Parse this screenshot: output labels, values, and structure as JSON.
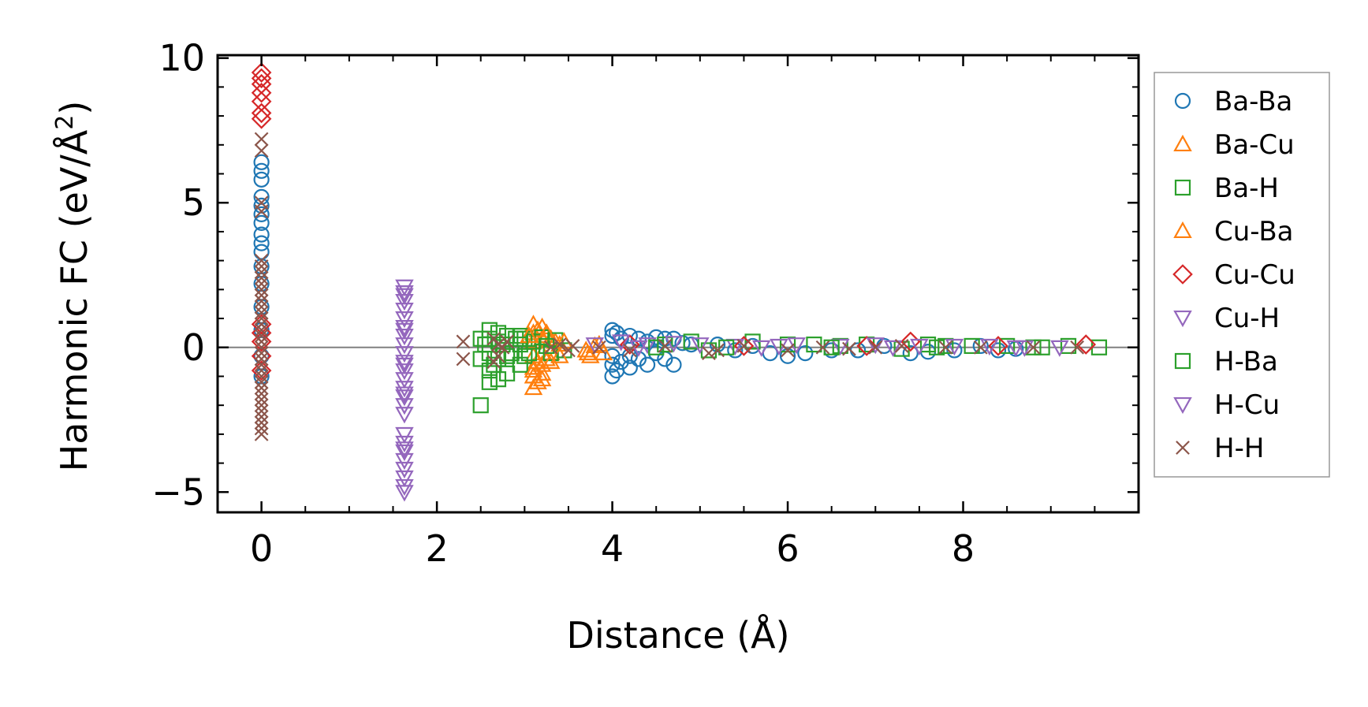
{
  "chart_data": {
    "type": "scatter",
    "xlabel": "Distance (Å)",
    "ylabel": "Harmonic FC (eV/Å",
    "ylabel_sup": "2",
    "ylabel_close": ")",
    "xlim": [
      -0.5,
      10.0
    ],
    "ylim": [
      -5.7,
      10.1
    ],
    "xticks": [
      0,
      2,
      4,
      6,
      8
    ],
    "xtick_labels": [
      "0",
      "2",
      "4",
      "6",
      "8"
    ],
    "yticks": [
      -5,
      0,
      5,
      10
    ],
    "ytick_labels": [
      "−5",
      "0",
      "5",
      "10"
    ],
    "reference_line": {
      "y": 0,
      "color": "#808080"
    },
    "grid": false,
    "legend_position": "outside-right",
    "series": [
      {
        "name": "Ba-Ba",
        "marker": "circle",
        "color": "#1f77b4",
        "points": [
          [
            0,
            6.4
          ],
          [
            0,
            6.1
          ],
          [
            0,
            5.8
          ],
          [
            0,
            5.2
          ],
          [
            0,
            4.9
          ],
          [
            0,
            4.6
          ],
          [
            0,
            4.3
          ],
          [
            0,
            3.9
          ],
          [
            0,
            3.6
          ],
          [
            0,
            3.3
          ],
          [
            0,
            2.8
          ],
          [
            0,
            2.2
          ],
          [
            0,
            1.4
          ],
          [
            0,
            0.6
          ],
          [
            0,
            -0.3
          ],
          [
            0,
            -1.0
          ],
          [
            4.0,
            0.6
          ],
          [
            4.0,
            0.4
          ],
          [
            4.0,
            -0.3
          ],
          [
            4.0,
            -0.6
          ],
          [
            4.0,
            -1.0
          ],
          [
            4.05,
            0.5
          ],
          [
            4.05,
            -0.8
          ],
          [
            4.1,
            0.3
          ],
          [
            4.1,
            -0.5
          ],
          [
            4.2,
            0.4
          ],
          [
            4.2,
            -0.3
          ],
          [
            4.2,
            -0.7
          ],
          [
            4.3,
            0.3
          ],
          [
            4.3,
            -0.4
          ],
          [
            4.4,
            0.2
          ],
          [
            4.4,
            -0.6
          ],
          [
            4.5,
            0.35
          ],
          [
            4.5,
            -0.2
          ],
          [
            4.6,
            0.3
          ],
          [
            4.6,
            -0.4
          ],
          [
            4.7,
            0.3
          ],
          [
            4.7,
            -0.6
          ],
          [
            4.8,
            0.15
          ],
          [
            4.9,
            0.1
          ],
          [
            5.2,
            0.1
          ],
          [
            5.4,
            -0.1
          ],
          [
            5.6,
            0.05
          ],
          [
            5.8,
            -0.2
          ],
          [
            6.0,
            -0.3
          ],
          [
            6.2,
            -0.2
          ],
          [
            6.5,
            -0.1
          ],
          [
            6.8,
            -0.1
          ],
          [
            7.1,
            0.05
          ],
          [
            7.4,
            -0.2
          ],
          [
            7.6,
            -0.15
          ],
          [
            7.9,
            -0.1
          ],
          [
            8.2,
            0.05
          ],
          [
            8.4,
            -0.1
          ],
          [
            8.6,
            -0.05
          ]
        ]
      },
      {
        "name": "Ba-Cu",
        "marker": "triangle-up",
        "color": "#ff7f0e",
        "points": [
          [
            3.1,
            0.8
          ],
          [
            3.1,
            0.5
          ],
          [
            3.1,
            0.2
          ],
          [
            3.1,
            -0.3
          ],
          [
            3.1,
            -0.7
          ],
          [
            3.1,
            -1.0
          ],
          [
            3.1,
            -1.4
          ],
          [
            3.15,
            0.6
          ],
          [
            3.15,
            -0.5
          ],
          [
            3.15,
            -1.2
          ],
          [
            3.2,
            0.7
          ],
          [
            3.2,
            0.3
          ],
          [
            3.2,
            -0.2
          ],
          [
            3.2,
            -0.6
          ],
          [
            3.2,
            -0.9
          ],
          [
            3.25,
            0.4
          ],
          [
            3.25,
            -0.4
          ],
          [
            3.3,
            0.3
          ],
          [
            3.3,
            -0.2
          ],
          [
            3.35,
            0.2
          ],
          [
            3.4,
            0.1
          ],
          [
            3.7,
            -0.1
          ],
          [
            3.75,
            -0.3
          ],
          [
            3.8,
            0.05
          ],
          [
            3.9,
            -0.2
          ]
        ]
      },
      {
        "name": "Ba-H",
        "marker": "square",
        "color": "#2ca02c",
        "points": [
          [
            2.5,
            -2.0
          ],
          [
            2.5,
            0.3
          ],
          [
            2.5,
            -0.4
          ],
          [
            2.6,
            0.6
          ],
          [
            2.6,
            0.3
          ],
          [
            2.6,
            -0.2
          ],
          [
            2.6,
            -0.8
          ],
          [
            2.6,
            -1.2
          ],
          [
            2.7,
            0.5
          ],
          [
            2.7,
            0.2
          ],
          [
            2.7,
            -0.4
          ],
          [
            2.7,
            -1.1
          ],
          [
            2.8,
            0.4
          ],
          [
            2.8,
            -0.3
          ],
          [
            2.8,
            -0.9
          ],
          [
            2.9,
            0.3
          ],
          [
            2.95,
            0.4
          ],
          [
            2.95,
            -0.6
          ],
          [
            3.0,
            0.3
          ],
          [
            3.0,
            -0.3
          ],
          [
            3.1,
            0.2
          ],
          [
            3.2,
            0.35
          ],
          [
            3.3,
            -0.2
          ],
          [
            3.35,
            0.25
          ],
          [
            3.45,
            -0.1
          ],
          [
            4.6,
            0.1
          ],
          [
            4.9,
            0.2
          ],
          [
            5.1,
            -0.1
          ],
          [
            5.6,
            0.2
          ],
          [
            6.0,
            0.1
          ],
          [
            6.3,
            0.1
          ],
          [
            6.6,
            0.05
          ],
          [
            6.9,
            0.1
          ],
          [
            7.3,
            -0.05
          ],
          [
            7.6,
            0.1
          ],
          [
            7.8,
            0.05
          ],
          [
            8.1,
            0.05
          ],
          [
            8.5,
            0.05
          ],
          [
            8.8,
            0.0
          ],
          [
            9.2,
            0.05
          ],
          [
            9.55,
            0.0
          ]
        ]
      },
      {
        "name": "Cu-Ba",
        "marker": "triangle-up",
        "color": "#ff7f0e",
        "points": [
          [
            3.05,
            0.4
          ],
          [
            3.1,
            -0.8
          ],
          [
            3.2,
            -1.1
          ],
          [
            3.25,
            0.5
          ],
          [
            3.3,
            -0.5
          ],
          [
            3.4,
            -0.3
          ],
          [
            3.45,
            0.2
          ],
          [
            3.72,
            -0.2
          ],
          [
            3.85,
            0.1
          ]
        ]
      },
      {
        "name": "Cu-Cu",
        "marker": "diamond",
        "color": "#d62728",
        "points": [
          [
            0,
            9.5
          ],
          [
            0,
            9.3
          ],
          [
            0,
            9.1
          ],
          [
            0,
            8.8
          ],
          [
            0,
            8.5
          ],
          [
            0,
            8.1
          ],
          [
            0,
            7.9
          ],
          [
            0,
            0.8
          ],
          [
            0,
            0.5
          ],
          [
            0,
            0.2
          ],
          [
            0,
            -0.3
          ],
          [
            0,
            -0.8
          ],
          [
            4.2,
            0.1
          ],
          [
            5.5,
            0.05
          ],
          [
            6.9,
            0.05
          ],
          [
            7.4,
            0.2
          ],
          [
            8.4,
            0.05
          ],
          [
            9.4,
            0.1
          ]
        ]
      },
      {
        "name": "Cu-H",
        "marker": "triangle-down",
        "color": "#9467bd",
        "points": [
          [
            1.63,
            2.1
          ],
          [
            1.63,
            1.9
          ],
          [
            1.63,
            1.6
          ],
          [
            1.63,
            1.3
          ],
          [
            1.63,
            1.0
          ],
          [
            1.63,
            0.7
          ],
          [
            1.63,
            0.4
          ],
          [
            1.63,
            0.1
          ],
          [
            1.63,
            -0.2
          ],
          [
            1.63,
            -0.5
          ],
          [
            1.63,
            -0.8
          ],
          [
            1.63,
            -1.1
          ],
          [
            1.63,
            -1.4
          ],
          [
            1.63,
            -1.7
          ],
          [
            1.63,
            -2.0
          ],
          [
            1.63,
            -2.3
          ],
          [
            1.63,
            -3.0
          ],
          [
            1.63,
            -3.3
          ],
          [
            1.63,
            -3.6
          ],
          [
            1.63,
            -3.9
          ],
          [
            1.63,
            -4.2
          ],
          [
            1.63,
            -4.5
          ],
          [
            1.63,
            -4.8
          ],
          [
            1.63,
            -5.0
          ],
          [
            3.8,
            0.1
          ],
          [
            4.1,
            0.2
          ],
          [
            4.4,
            0.1
          ],
          [
            4.7,
            0.15
          ],
          [
            5.0,
            0.1
          ],
          [
            5.4,
            0.05
          ],
          [
            5.9,
            0.05
          ],
          [
            6.1,
            0.1
          ],
          [
            6.6,
            0.05
          ],
          [
            7.0,
            0.1
          ],
          [
            7.5,
            0.05
          ],
          [
            7.9,
            0.05
          ],
          [
            8.3,
            0.05
          ],
          [
            8.7,
            0.0
          ],
          [
            9.1,
            0.0
          ]
        ]
      },
      {
        "name": "H-Ba",
        "marker": "square",
        "color": "#2ca02c",
        "points": [
          [
            2.55,
            0.1
          ],
          [
            2.65,
            -0.6
          ],
          [
            2.75,
            0.1
          ],
          [
            2.85,
            -0.2
          ],
          [
            2.95,
            0.1
          ],
          [
            3.05,
            -0.2
          ],
          [
            3.25,
            0.05
          ],
          [
            4.5,
            0.0
          ],
          [
            5.3,
            0.0
          ],
          [
            6.5,
            0.0
          ],
          [
            7.7,
            0.0
          ],
          [
            8.9,
            0.0
          ]
        ]
      },
      {
        "name": "H-Cu",
        "marker": "triangle-down",
        "color": "#9467bd",
        "points": [
          [
            1.63,
            1.8
          ],
          [
            1.63,
            0.6
          ],
          [
            1.63,
            -0.6
          ],
          [
            1.63,
            -1.6
          ],
          [
            1.63,
            -3.5
          ],
          [
            4.3,
            0.0
          ],
          [
            5.7,
            0.0
          ],
          [
            7.2,
            0.0
          ],
          [
            8.6,
            0.0
          ]
        ]
      },
      {
        "name": "H-H",
        "marker": "x",
        "color": "#8c564b",
        "points": [
          [
            0,
            7.2
          ],
          [
            0,
            6.8
          ],
          [
            0,
            5.0
          ],
          [
            0,
            4.7
          ],
          [
            0,
            3.0
          ],
          [
            0,
            2.8
          ],
          [
            0,
            2.6
          ],
          [
            0,
            2.4
          ],
          [
            0,
            2.2
          ],
          [
            0,
            2.0
          ],
          [
            0,
            1.8
          ],
          [
            0,
            1.6
          ],
          [
            0,
            1.4
          ],
          [
            0,
            1.2
          ],
          [
            0,
            1.0
          ],
          [
            0,
            0.8
          ],
          [
            0,
            0.6
          ],
          [
            0,
            0.4
          ],
          [
            0,
            0.2
          ],
          [
            0,
            0.0
          ],
          [
            0,
            -0.2
          ],
          [
            0,
            -0.4
          ],
          [
            0,
            -0.6
          ],
          [
            0,
            -0.8
          ],
          [
            0,
            -1.0
          ],
          [
            0,
            -1.2
          ],
          [
            0,
            -1.4
          ],
          [
            0,
            -1.6
          ],
          [
            0,
            -1.8
          ],
          [
            0,
            -2.0
          ],
          [
            0,
            -2.2
          ],
          [
            0,
            -2.4
          ],
          [
            0,
            -2.6
          ],
          [
            0,
            -2.8
          ],
          [
            0,
            -3.0
          ],
          [
            2.3,
            0.2
          ],
          [
            2.3,
            -0.4
          ],
          [
            2.65,
            0.3
          ],
          [
            2.65,
            -0.5
          ],
          [
            2.7,
            0.1
          ],
          [
            2.7,
            -0.3
          ],
          [
            2.75,
            0.0
          ],
          [
            2.8,
            0.2
          ],
          [
            3.3,
            0.0
          ],
          [
            3.4,
            0.1
          ],
          [
            3.5,
            -0.1
          ],
          [
            3.55,
            0.05
          ],
          [
            3.85,
            0.0
          ],
          [
            4.2,
            -0.1
          ],
          [
            4.6,
            0.05
          ],
          [
            5.1,
            -0.2
          ],
          [
            5.2,
            -0.1
          ],
          [
            5.5,
            0.05
          ],
          [
            6.0,
            -0.1
          ],
          [
            6.4,
            0.0
          ],
          [
            6.7,
            -0.05
          ],
          [
            7.0,
            0.0
          ],
          [
            7.3,
            0.05
          ],
          [
            7.8,
            0.0
          ],
          [
            8.2,
            0.0
          ],
          [
            8.8,
            0.0
          ],
          [
            9.3,
            0.0
          ]
        ]
      }
    ]
  }
}
